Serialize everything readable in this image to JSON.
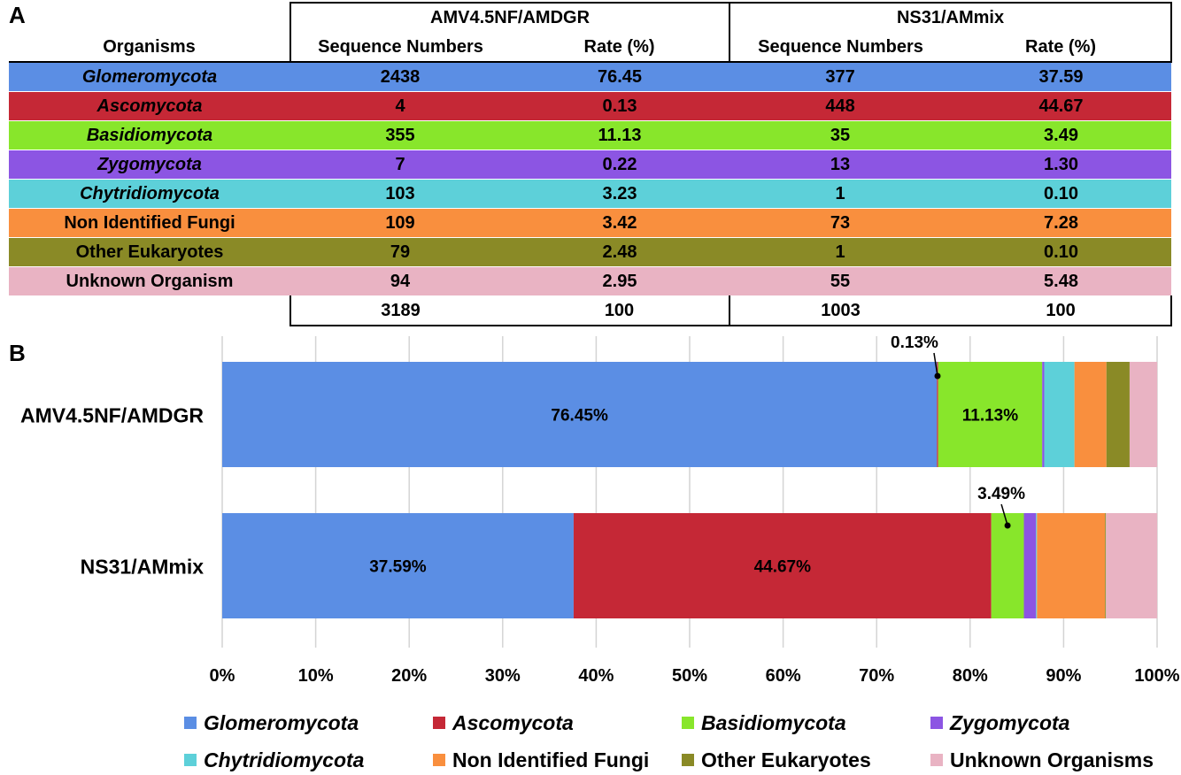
{
  "panel_a": {
    "label": "A",
    "group_headers": [
      "AMV4.5NF/AMDGR",
      "NS31/AMmix"
    ],
    "column_headers": {
      "organisms": "Organisms",
      "seq": "Sequence Numbers",
      "rate": "Rate (%)"
    },
    "rows": [
      {
        "organism": "Glomeromycota",
        "italic": true,
        "color": "#5b8ee4",
        "amv_seq": "2438",
        "amv_rate": "76.45",
        "ns_seq": "377",
        "ns_rate": "37.59"
      },
      {
        "organism": "Ascomycota",
        "italic": true,
        "color": "#c52836",
        "amv_seq": "4",
        "amv_rate": "0.13",
        "ns_seq": "448",
        "ns_rate": "44.67"
      },
      {
        "organism": "Basidiomycota",
        "italic": true,
        "color": "#88e62b",
        "amv_seq": "355",
        "amv_rate": "11.13",
        "ns_seq": "35",
        "ns_rate": "3.49"
      },
      {
        "organism": "Zygomycota",
        "italic": true,
        "color": "#8c55e3",
        "amv_seq": "7",
        "amv_rate": "0.22",
        "ns_seq": "13",
        "ns_rate": "1.30"
      },
      {
        "organism": "Chytridiomycota",
        "italic": true,
        "color": "#5dd0d9",
        "amv_seq": "103",
        "amv_rate": "3.23",
        "ns_seq": "1",
        "ns_rate": "0.10"
      },
      {
        "organism": "Non Identified Fungi",
        "italic": false,
        "color": "#f98f3e",
        "amv_seq": "109",
        "amv_rate": "3.42",
        "ns_seq": "73",
        "ns_rate": "7.28"
      },
      {
        "organism": "Other Eukaryotes",
        "italic": false,
        "color": "#8a8a26",
        "amv_seq": "79",
        "amv_rate": "2.48",
        "ns_seq": "1",
        "ns_rate": "0.10"
      },
      {
        "organism": "Unknown Organism",
        "italic": false,
        "color": "#e9b3c3",
        "amv_seq": "94",
        "amv_rate": "2.95",
        "ns_seq": "55",
        "ns_rate": "5.48"
      }
    ],
    "totals": {
      "amv_seq": "3189",
      "amv_rate": "100",
      "ns_seq": "1003",
      "ns_rate": "100"
    }
  },
  "panel_b": {
    "label": "B"
  },
  "chart_data": {
    "type": "bar",
    "orientation": "horizontal",
    "stacked": true,
    "categories": [
      "AMV4.5NF/AMDGR",
      "NS31/AMmix"
    ],
    "series": [
      {
        "name": "Glomeromycota",
        "italic": true,
        "color": "#5b8ee4",
        "values": [
          76.45,
          37.59
        ]
      },
      {
        "name": "Ascomycota",
        "italic": true,
        "color": "#c52836",
        "values": [
          0.13,
          44.67
        ]
      },
      {
        "name": "Basidiomycota",
        "italic": true,
        "color": "#88e62b",
        "values": [
          11.13,
          3.49
        ]
      },
      {
        "name": "Zygomycota",
        "italic": true,
        "color": "#8c55e3",
        "values": [
          0.22,
          1.3
        ]
      },
      {
        "name": "Chytridiomycota",
        "italic": true,
        "color": "#5dd0d9",
        "values": [
          3.23,
          0.1
        ]
      },
      {
        "name": "Non Identified Fungi",
        "italic": false,
        "color": "#f98f3e",
        "values": [
          3.42,
          7.28
        ]
      },
      {
        "name": "Other Eukaryotes",
        "italic": false,
        "color": "#8a8a26",
        "values": [
          2.48,
          0.1
        ]
      },
      {
        "name": "Unknown Organisms",
        "italic": false,
        "color": "#e9b3c3",
        "values": [
          2.95,
          5.48
        ]
      }
    ],
    "xlim": [
      0,
      100
    ],
    "xticks": [
      "0%",
      "10%",
      "20%",
      "30%",
      "40%",
      "50%",
      "60%",
      "70%",
      "80%",
      "90%",
      "100%"
    ],
    "inside_labels": [
      {
        "category": 0,
        "series": 0,
        "text": "76.45%"
      },
      {
        "category": 0,
        "series": 2,
        "text": "11.13%"
      },
      {
        "category": 1,
        "series": 0,
        "text": "37.59%"
      },
      {
        "category": 1,
        "series": 1,
        "text": "44.67%"
      }
    ],
    "callouts": [
      {
        "category": 0,
        "series": 1,
        "text": "0.13%"
      },
      {
        "category": 1,
        "series": 2,
        "text": "3.49%"
      }
    ],
    "grid": true,
    "legend": "bottom"
  }
}
